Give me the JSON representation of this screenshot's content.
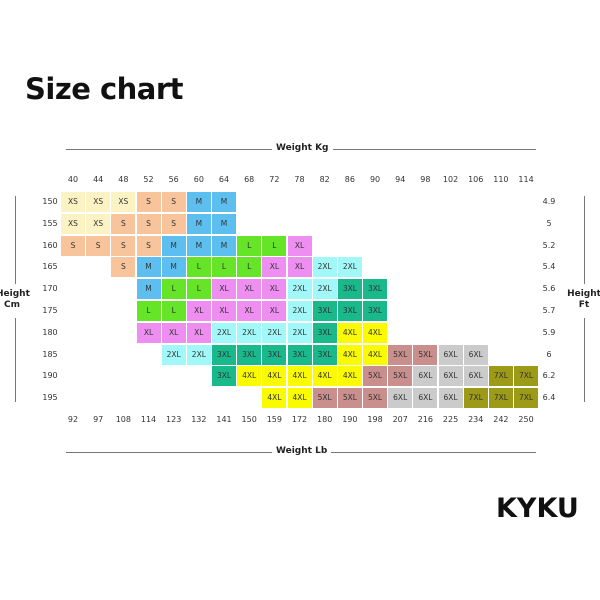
{
  "title": "Size chart",
  "brand": "KYKU",
  "chart_data": {
    "type": "table",
    "x_top_label": "Weight Kg",
    "x_bottom_label": "Weight Lb",
    "y_left_label": [
      "Height",
      "Cm"
    ],
    "y_right_label": [
      "Height",
      "Ft"
    ],
    "weight_kg": [
      "40",
      "44",
      "48",
      "52",
      "56",
      "60",
      "64",
      "68",
      "72",
      "78",
      "82",
      "86",
      "90",
      "94",
      "98",
      "102",
      "106",
      "110",
      "114"
    ],
    "weight_lb": [
      "92",
      "97",
      "108",
      "114",
      "123",
      "132",
      "141",
      "150",
      "159",
      "172",
      "180",
      "190",
      "198",
      "207",
      "216",
      "225",
      "234",
      "242",
      "250"
    ],
    "height_cm": [
      "150",
      "155",
      "160",
      "165",
      "170",
      "175",
      "180",
      "185",
      "190",
      "195"
    ],
    "height_ft": [
      "4.9",
      "5",
      "5.2",
      "5.4",
      "5.6",
      "5.7",
      "5.9",
      "6",
      "6.2",
      "6.4"
    ],
    "rows": [
      [
        "XS",
        "XS",
        "XS",
        "S",
        "S",
        "M",
        "M",
        null,
        null,
        null,
        null,
        null,
        null,
        null,
        null,
        null,
        null,
        null,
        null
      ],
      [
        "XS",
        "XS",
        "S",
        "S",
        "S",
        "M",
        "M",
        null,
        null,
        null,
        null,
        null,
        null,
        null,
        null,
        null,
        null,
        null,
        null
      ],
      [
        "S",
        "S",
        "S",
        "S",
        "M",
        "M",
        "M",
        "L",
        "L",
        "XL",
        null,
        null,
        null,
        null,
        null,
        null,
        null,
        null,
        null
      ],
      [
        null,
        null,
        "S",
        "M",
        "M",
        "L",
        "L",
        "L",
        "XL",
        "XL",
        "2XL",
        "2XL",
        null,
        null,
        null,
        null,
        null,
        null,
        null
      ],
      [
        null,
        null,
        null,
        "M",
        "L",
        "L",
        "XL",
        "XL",
        "XL",
        "2XL",
        "2XL",
        "3XL",
        "3XL",
        null,
        null,
        null,
        null,
        null,
        null
      ],
      [
        null,
        null,
        null,
        "L",
        "L",
        "XL",
        "XL",
        "XL",
        "XL",
        "2XL",
        "3XL",
        "3XL",
        "3XL",
        null,
        null,
        null,
        null,
        null,
        null
      ],
      [
        null,
        null,
        null,
        "XL",
        "XL",
        "XL",
        "2XL",
        "2XL",
        "2XL",
        "2XL",
        "3XL",
        "4XL",
        "4XL",
        null,
        null,
        null,
        null,
        null,
        null
      ],
      [
        null,
        null,
        null,
        null,
        "2XL",
        "2XL",
        "3XL",
        "3XL",
        "3XL",
        "3XL",
        "3XL",
        "4XL",
        "4XL",
        "5XL",
        "5XL",
        "6XL",
        "6XL",
        null,
        null
      ],
      [
        null,
        null,
        null,
        null,
        null,
        null,
        "3XL",
        "4XL",
        "4XL",
        "4XL",
        "4XL",
        "4XL",
        "5XL",
        "5XL",
        "6XL",
        "6XL",
        "6XL",
        "7XL",
        "7XL"
      ],
      [
        null,
        null,
        null,
        null,
        null,
        null,
        null,
        null,
        "4XL",
        "4XL",
        "5XL",
        "5XL",
        "5XL",
        "6XL",
        "6XL",
        "6XL",
        "7XL",
        "7XL",
        "7XL"
      ]
    ],
    "size_colors": {
      "XS": "#fcf3c4",
      "S": "#f8c49c",
      "M": "#5cbff0",
      "L": "#66e428",
      "XL": "#ee8ef0",
      "2XL": "#a2f8f8",
      "3XL": "#19b98c",
      "4XL": "#fafa00",
      "5XL": "#c98f8c",
      "6XL": "#cbcbcb",
      "7XL": "#9c9a16"
    }
  }
}
